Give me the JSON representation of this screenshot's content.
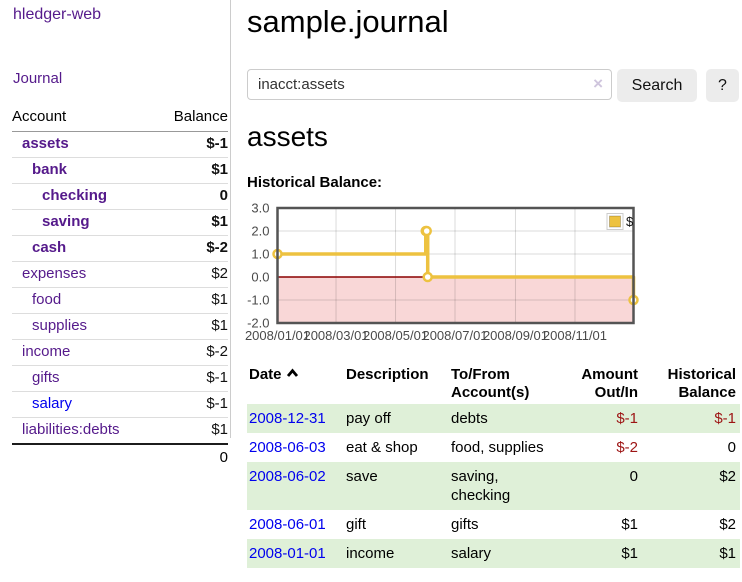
{
  "app": {
    "brand": "hledger-web",
    "nav_journal": "Journal"
  },
  "colors": {
    "link_blue": "#0000ee",
    "link_visited_purple": "#551a8b",
    "negative_strong": "#8f1414",
    "negative_soft": "#bf7373",
    "row_stripe_green": "#dff0d8",
    "chart_series_yellow": "#edc240",
    "zero_line_dark_red": "#8b0000",
    "negative_region_pink": "#f9d7d7",
    "chart_border_gray": "#545454",
    "button_gray": "#ececec"
  },
  "sidebar": {
    "header": {
      "account": "Account",
      "balance": "Balance"
    },
    "accounts": [
      {
        "name": "assets",
        "depth": 1,
        "bold": true,
        "balance": "$-1",
        "negative": true,
        "blue": false
      },
      {
        "name": "bank",
        "depth": 2,
        "bold": true,
        "balance": "$1",
        "negative": false,
        "blue": false
      },
      {
        "name": "checking",
        "depth": 3,
        "bold": true,
        "balance": "0",
        "negative": false,
        "blue": false
      },
      {
        "name": "saving",
        "depth": 3,
        "bold": true,
        "balance": "$1",
        "negative": false,
        "blue": false
      },
      {
        "name": "cash",
        "depth": 2,
        "bold": true,
        "balance": "$-2",
        "negative": true,
        "blue": false
      },
      {
        "name": "expenses",
        "depth": 1,
        "bold": false,
        "balance": "$2",
        "negative": false,
        "blue": false
      },
      {
        "name": "food",
        "depth": 2,
        "bold": false,
        "balance": "$1",
        "negative": false,
        "blue": false
      },
      {
        "name": "supplies",
        "depth": 2,
        "bold": false,
        "balance": "$1",
        "negative": false,
        "blue": false
      },
      {
        "name": "income",
        "depth": 1,
        "bold": false,
        "balance": "$-2",
        "negative": true,
        "blue": false
      },
      {
        "name": "gifts",
        "depth": 2,
        "bold": false,
        "balance": "$-1",
        "negative": true,
        "blue": false
      },
      {
        "name": "salary",
        "depth": 2,
        "bold": false,
        "balance": "$-1",
        "negative": true,
        "blue": true
      },
      {
        "name": "liabilities:debts",
        "depth": 1,
        "bold": false,
        "balance": "$1",
        "negative": false,
        "blue": false
      }
    ],
    "total": "0"
  },
  "header": {
    "title": "sample.journal"
  },
  "search": {
    "value": "inacct:assets",
    "clear_icon": "×",
    "button": "Search",
    "help_button": "?"
  },
  "account_page": {
    "title": "assets",
    "chart_label": "Historical Balance:"
  },
  "chart_data": {
    "type": "line",
    "title": "Historical Balance",
    "series": [
      {
        "name": "$",
        "color": "#edc240",
        "steps": true,
        "points": [
          [
            "2008-01-01",
            1
          ],
          [
            "2008-06-01",
            2
          ],
          [
            "2008-06-02",
            2
          ],
          [
            "2008-06-03",
            0
          ],
          [
            "2008-12-31",
            -1
          ]
        ]
      }
    ],
    "xrange": [
      "2008-01-01",
      "2008-12-31"
    ],
    "xticks": [
      "2008/01/01",
      "2008/03/01",
      "2008/05/01",
      "2008/07/01",
      "2008/09/01",
      "2008/11/01"
    ],
    "yticks": [
      3.0,
      2.0,
      1.0,
      0.0,
      -1.0,
      -2.0
    ],
    "ylim": [
      -2,
      3
    ],
    "grid": true,
    "legend_position": "top-right",
    "zero_line_color": "#8b0000",
    "negative_region_color": "#f9d7d7"
  },
  "register": {
    "columns": [
      "Date",
      "Description",
      "To/From Account(s)",
      "Amount Out/In",
      "Historical Balance"
    ],
    "rows": [
      {
        "date": "2008-12-31",
        "description": "pay off",
        "accounts": "debts",
        "amount": "$-1",
        "amount_negative": true,
        "balance": "$-1",
        "balance_negative": true
      },
      {
        "date": "2008-06-03",
        "description": "eat & shop",
        "accounts": "food, supplies",
        "amount": "$-2",
        "amount_negative": true,
        "balance": "0",
        "balance_negative": false
      },
      {
        "date": "2008-06-02",
        "description": "save",
        "accounts": "saving, checking",
        "amount": "0",
        "amount_negative": false,
        "balance": "$2",
        "balance_negative": false
      },
      {
        "date": "2008-06-01",
        "description": "gift",
        "accounts": "gifts",
        "amount": "$1",
        "amount_negative": false,
        "balance": "$2",
        "balance_negative": false
      },
      {
        "date": "2008-01-01",
        "description": "income",
        "accounts": "salary",
        "amount": "$1",
        "amount_negative": false,
        "balance": "$1",
        "balance_negative": false
      }
    ]
  }
}
